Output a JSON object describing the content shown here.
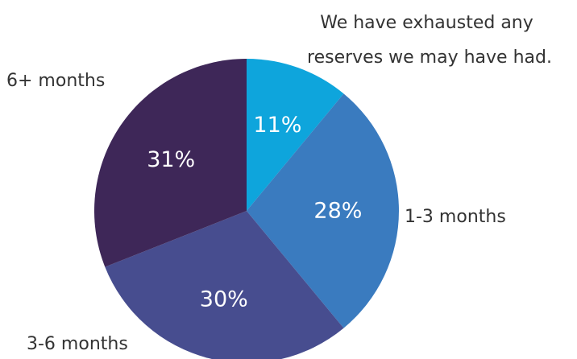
{
  "chart_data": {
    "type": "pie",
    "categories": [
      "We have exhausted any reserves we may have had.",
      "1-3 months",
      "3-6 months",
      "6+ months"
    ],
    "values": [
      11,
      28,
      30,
      31
    ],
    "value_labels": [
      "11%",
      "28%",
      "30%",
      "31%"
    ],
    "colors": [
      "#0ea5dc",
      "#3a7bbf",
      "#474d8f",
      "#3e2758"
    ],
    "start_angle_deg": 0,
    "direction": "clockwise",
    "legend": "none",
    "category_label_lines": [
      [
        "We have exhausted any",
        "reserves we may have had."
      ],
      [
        "1-3 months"
      ],
      [
        "3-6 months"
      ],
      [
        "6+ months"
      ]
    ]
  }
}
